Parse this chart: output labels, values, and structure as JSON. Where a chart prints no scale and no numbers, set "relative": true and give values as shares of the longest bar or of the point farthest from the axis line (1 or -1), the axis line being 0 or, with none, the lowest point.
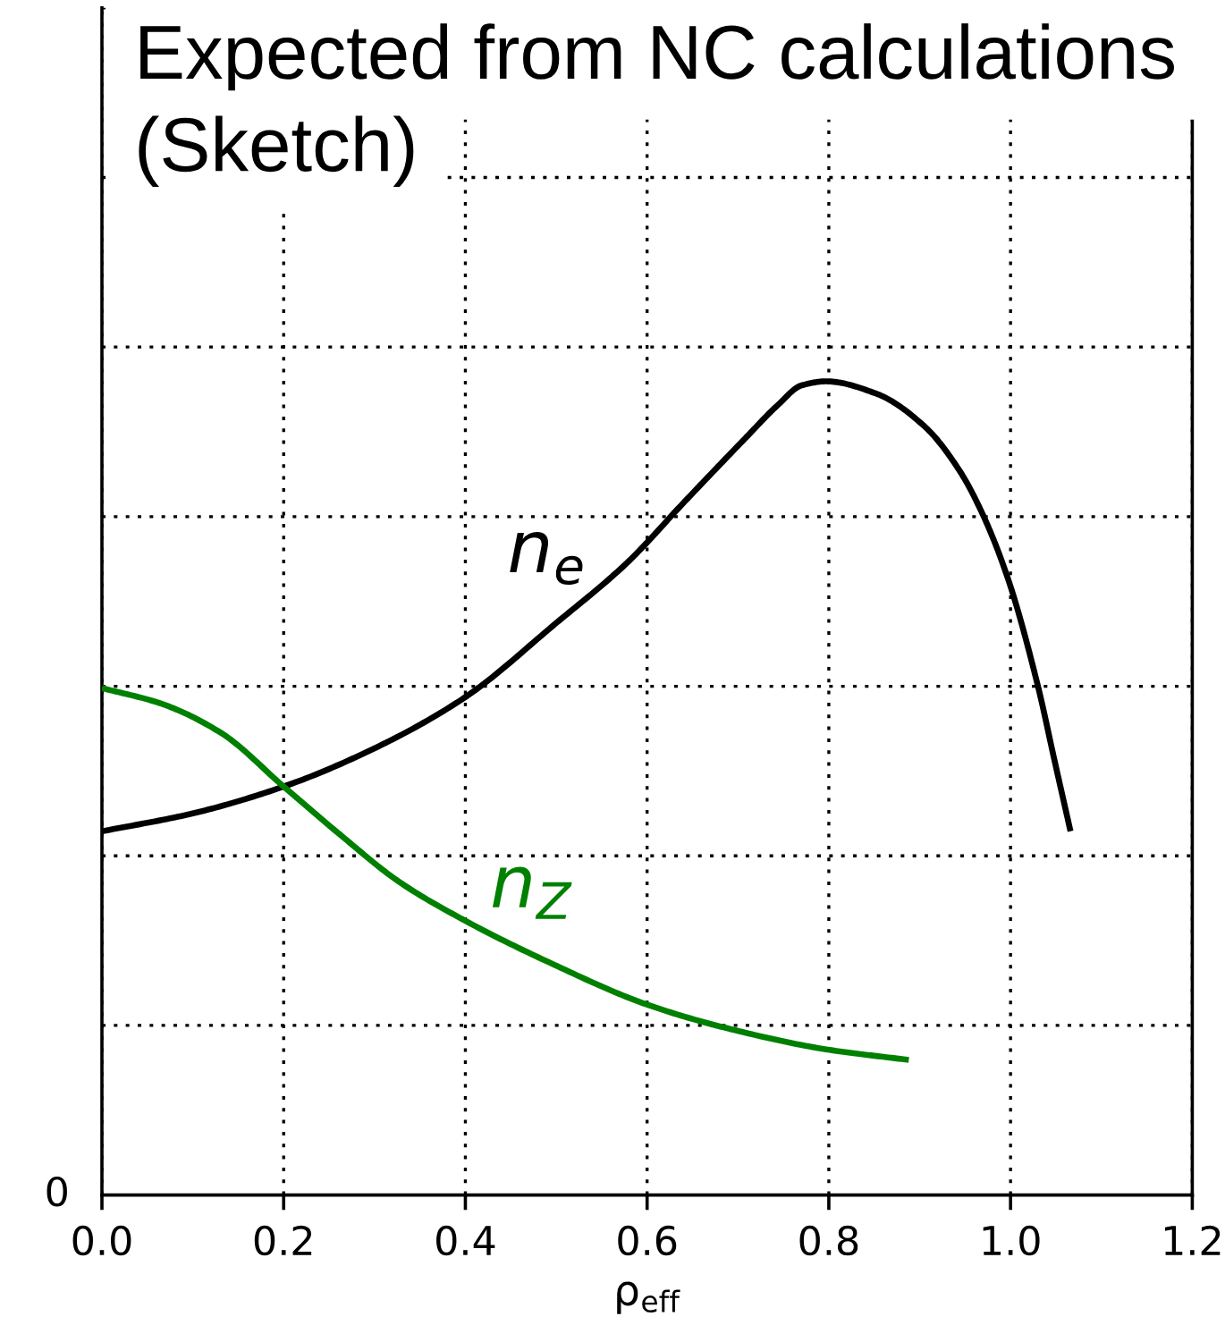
{
  "chart_data": {
    "type": "line",
    "title": "Expected from NC calculations\n(Sketch)",
    "xlabel": "ρ$_{eff}$",
    "relative": true,
    "xlim": [
      0,
      1.2
    ],
    "xticks": [
      {
        "value": 0,
        "label": "0.0"
      },
      0.2,
      0.4,
      0.6,
      0.8,
      {
        "value": 1,
        "label": "1.0"
      },
      1.2
    ],
    "grid": true,
    "annotations": [
      "0"
    ],
    "series": [
      {
        "name": "n$_{e}$",
        "color": "#000000",
        "x": [
          0,
          0.1,
          0.2,
          0.3,
          0.4,
          0.5,
          0.577,
          0.642,
          0.708,
          0.744,
          0.77,
          0.797,
          0.852,
          0.905,
          0.944,
          0.97,
          0.997,
          1.03,
          1.049,
          1.066
        ],
        "values": [
          0.447,
          0.469,
          0.502,
          0.549,
          0.612,
          0.703,
          0.776,
          0.853,
          0.93,
          0.971,
          0.995,
          1,
          0.985,
          0.945,
          0.89,
          0.835,
          0.758,
          0.626,
          0.531,
          0.447
        ]
      },
      {
        "name": "n$_{Z}$",
        "color": "#008000",
        "x": [
          0,
          0.065,
          0.131,
          0.2,
          0.262,
          0.327,
          0.4,
          0.492,
          0.6,
          0.688,
          0.797,
          0.888
        ],
        "values": [
          0.623,
          0.604,
          0.568,
          0.502,
          0.443,
          0.385,
          0.337,
          0.286,
          0.234,
          0.205,
          0.179,
          0.166
        ]
      }
    ]
  }
}
